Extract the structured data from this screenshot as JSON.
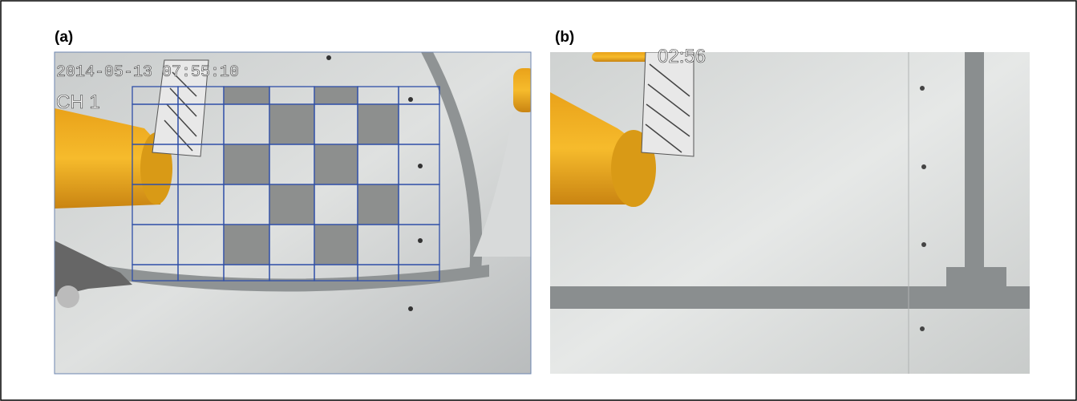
{
  "panels": [
    {
      "label": "(a)",
      "overlay": [
        "2014-05-13 07:55:10",
        "CH 1"
      ]
    },
    {
      "label": "(b)",
      "overlay": [
        "02:56"
      ]
    }
  ]
}
